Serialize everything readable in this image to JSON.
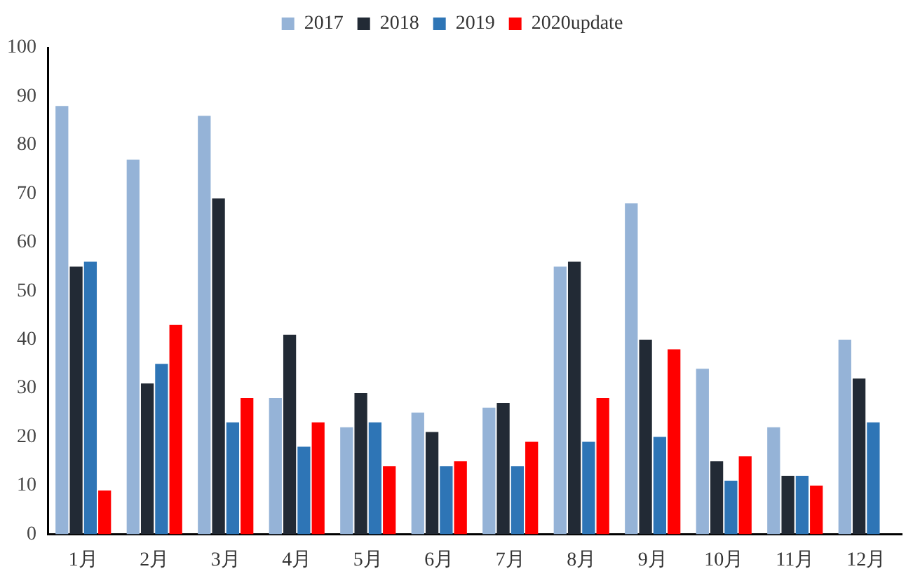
{
  "chart_data": {
    "type": "bar",
    "categories": [
      "1月",
      "2月",
      "3月",
      "4月",
      "5月",
      "6月",
      "7月",
      "8月",
      "9月",
      "10月",
      "11月",
      "12月"
    ],
    "series": [
      {
        "name": "2017",
        "color": "#95b3d7",
        "values": [
          88,
          77,
          86,
          28,
          22,
          25,
          26,
          55,
          68,
          34,
          22,
          40
        ]
      },
      {
        "name": "2018",
        "color": "#222a35",
        "values": [
          55,
          31,
          69,
          41,
          29,
          21,
          27,
          56,
          40,
          15,
          12,
          32
        ]
      },
      {
        "name": "2019",
        "color": "#2e75b6",
        "values": [
          56,
          35,
          23,
          18,
          23,
          14,
          14,
          19,
          20,
          11,
          12,
          23
        ]
      },
      {
        "name": "2020update",
        "color": "#ff0000",
        "values": [
          9,
          43,
          28,
          23,
          14,
          15,
          19,
          28,
          38,
          16,
          10,
          null
        ]
      }
    ],
    "ylim": [
      0,
      100
    ],
    "yticks": [
      0,
      10,
      20,
      30,
      40,
      50,
      60,
      70,
      80,
      90,
      100
    ],
    "grid": false,
    "legend": "top"
  }
}
